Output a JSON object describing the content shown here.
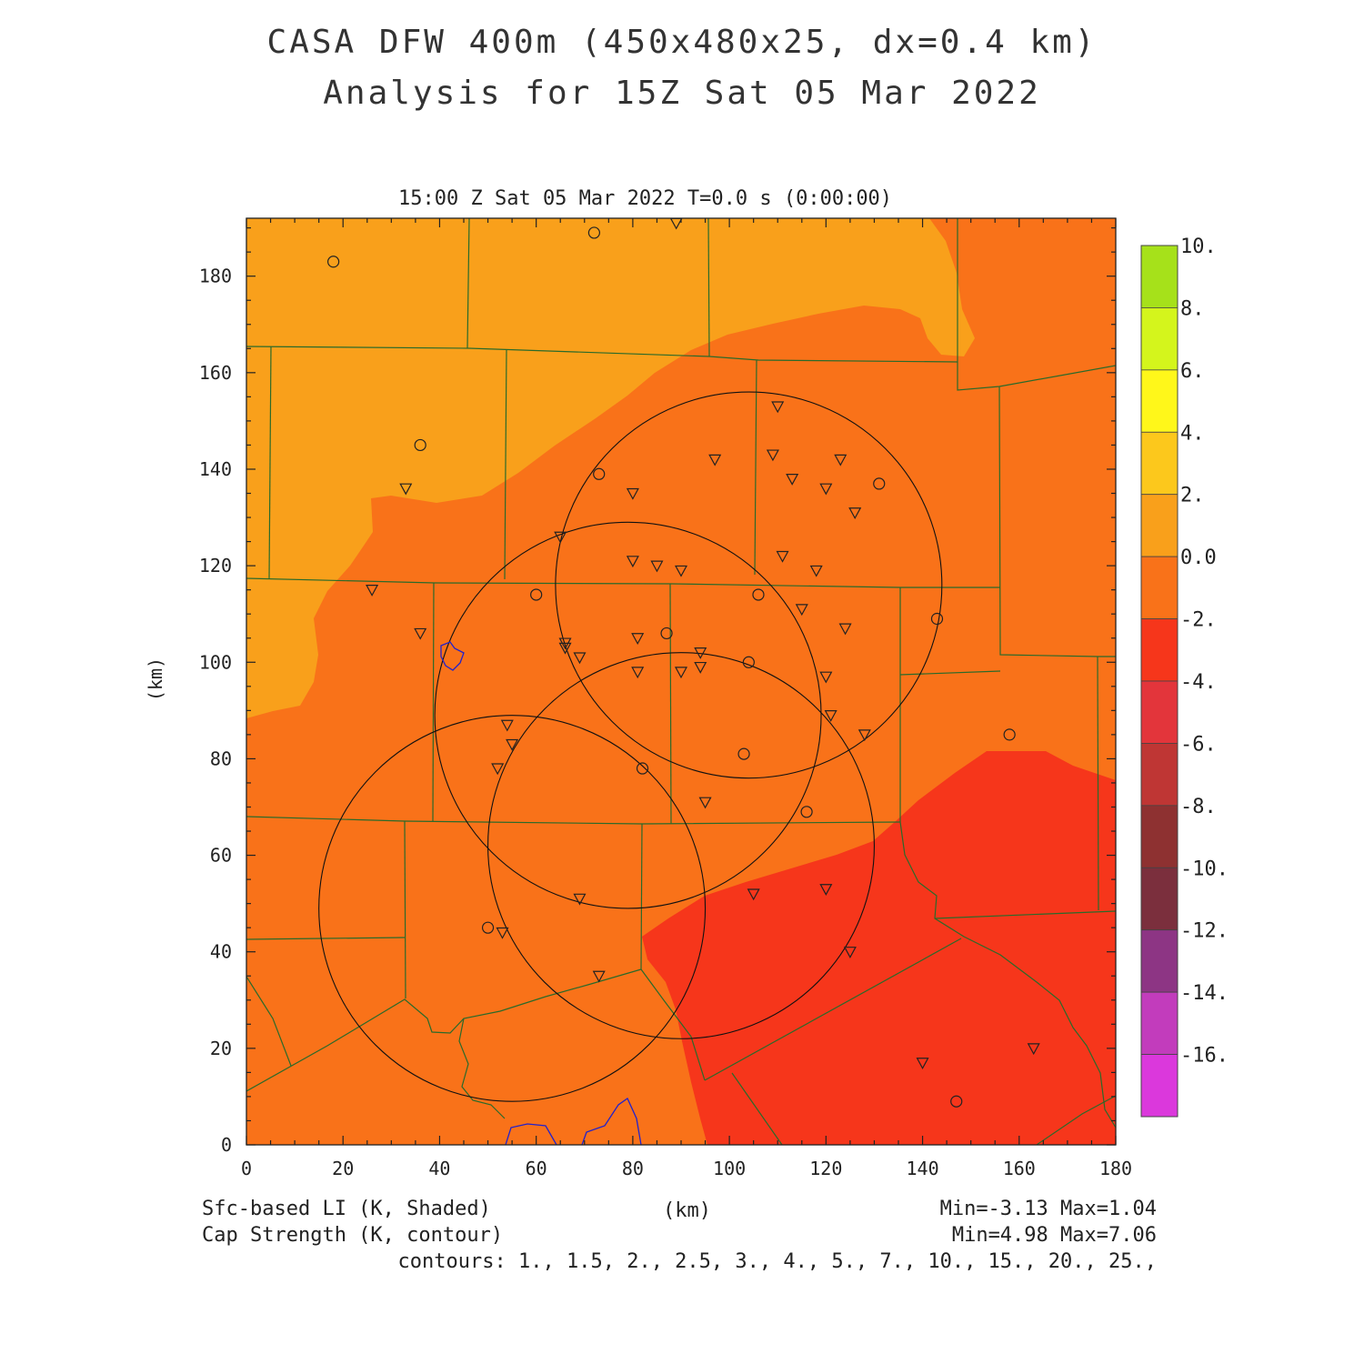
{
  "header": {
    "title_line1": "CASA DFW 400m (450x480x25, dx=0.4 km)",
    "title_line2": "Analysis for 15Z Sat 05 Mar 2022",
    "subtitle": "15:00 Z Sat 05 Mar 2022   T=0.0 s (0:00:00)"
  },
  "axes": {
    "x_label": "(km)",
    "y_label": "(km)",
    "x_range": [
      0,
      180
    ],
    "y_range": [
      0,
      192
    ],
    "x_ticks": [
      "0",
      "20",
      "40",
      "60",
      "80",
      "100",
      "120",
      "140",
      "160",
      "180"
    ],
    "y_ticks": [
      "0",
      "20",
      "40",
      "60",
      "80",
      "100",
      "120",
      "140",
      "160",
      "180"
    ]
  },
  "colorbar": {
    "labels": [
      "10.",
      "8.",
      "6.",
      "4.",
      "2.",
      "0.0",
      "-2.",
      "-4.",
      "-6.",
      "-8.",
      "-10.",
      "-12.",
      "-14.",
      "-16."
    ],
    "colors": [
      "#a6e11a",
      "#d4f51c",
      "#fff71a",
      "#fcc81c",
      "#f9a01b",
      "#f97219",
      "#f6361b",
      "#e3353b",
      "#bf3634",
      "#8e3131",
      "#7b2f3d",
      "#8d3584",
      "#c23cbc",
      "#db38dc"
    ]
  },
  "field_colors": {
    "zone_0_2": "#f9a01b",
    "zone_m2_0": "#f97219",
    "zone_m4_m2": "#f6361b",
    "county_lines": "#2a6a2a",
    "radar_rings": "#111111",
    "cap_contour": "#2222cc"
  },
  "footer": {
    "left_line1": "Sfc-based LI (K, Shaded)",
    "left_line2": "Cap Strength (K, contour)",
    "center": "(km)",
    "right_line1": "Min=-3.13 Max=1.04",
    "right_line2": "Min=4.98 Max=7.06",
    "contours": "contours: 1., 1.5, 2., 2.5, 3., 4., 5., 7., 10., 15., 20., 25.,"
  },
  "stats": {
    "li_min": -3.13,
    "li_max": 1.04,
    "cap_min": 4.98,
    "cap_max": 7.06
  },
  "map_data": {
    "radar_rings_center_km": [
      [
        55,
        49
      ],
      [
        79,
        89
      ],
      [
        104,
        116
      ],
      [
        90,
        62
      ]
    ],
    "radar_ring_radius_km": 40,
    "circle_stations_km": [
      [
        18,
        183
      ],
      [
        72,
        189
      ],
      [
        36,
        145
      ],
      [
        73,
        139
      ],
      [
        60,
        114
      ],
      [
        87,
        106
      ],
      [
        106,
        114
      ],
      [
        104,
        100
      ],
      [
        103,
        81
      ],
      [
        82,
        78
      ],
      [
        116,
        69
      ],
      [
        50,
        45
      ],
      [
        131,
        137
      ],
      [
        143,
        109
      ],
      [
        158,
        85
      ],
      [
        147,
        9
      ]
    ],
    "triangle_stations_km": [
      [
        89,
        191
      ],
      [
        33,
        136
      ],
      [
        26,
        115
      ],
      [
        36,
        106
      ],
      [
        65,
        126
      ],
      [
        80,
        135
      ],
      [
        97,
        142
      ],
      [
        110,
        153
      ],
      [
        109,
        143
      ],
      [
        113,
        138
      ],
      [
        123,
        142
      ],
      [
        120,
        136
      ],
      [
        126,
        131
      ],
      [
        80,
        121
      ],
      [
        85,
        120
      ],
      [
        90,
        119
      ],
      [
        111,
        122
      ],
      [
        118,
        119
      ],
      [
        115,
        111
      ],
      [
        124,
        107
      ],
      [
        66,
        104
      ],
      [
        66,
        103
      ],
      [
        69,
        101
      ],
      [
        81,
        105
      ],
      [
        94,
        102
      ],
      [
        94,
        99
      ],
      [
        90,
        98
      ],
      [
        81,
        98
      ],
      [
        120,
        97
      ],
      [
        121,
        89
      ],
      [
        128,
        85
      ],
      [
        54,
        87
      ],
      [
        55,
        83
      ],
      [
        52,
        78
      ],
      [
        95,
        71
      ],
      [
        69,
        51
      ],
      [
        105,
        52
      ],
      [
        120,
        53
      ],
      [
        53,
        44
      ],
      [
        125,
        40
      ],
      [
        73,
        35
      ],
      [
        140,
        17
      ],
      [
        163,
        20
      ]
    ]
  }
}
